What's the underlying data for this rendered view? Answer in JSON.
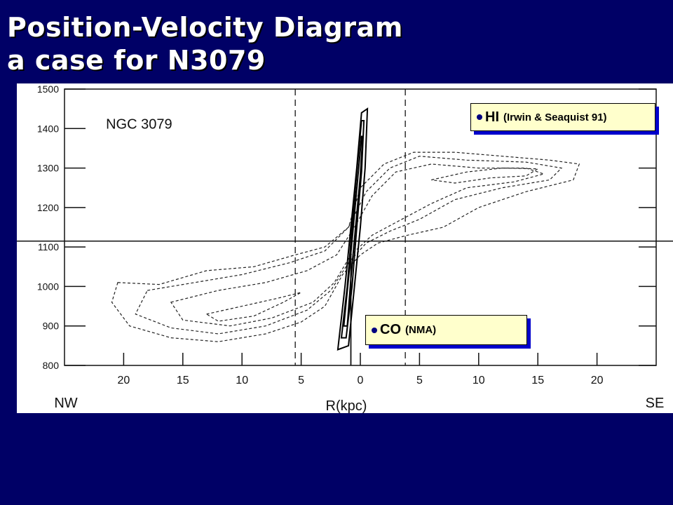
{
  "title": {
    "line1": "Position-Velocity Diagram",
    "line2": "a case for N3079"
  },
  "chart_data": {
    "type": "contour",
    "object_label": "NGC 3079",
    "xlabel": "R(kpc)",
    "x_left_label": "NW",
    "x_right_label": "SE",
    "x_ticks": [
      "20",
      "15",
      "10",
      "5",
      "0",
      "5",
      "10",
      "15",
      "20"
    ],
    "x_tick_values": [
      -20,
      -15,
      -10,
      -5,
      0,
      5,
      10,
      15,
      20
    ],
    "y_ticks": [
      "1500",
      "1400",
      "1300",
      "1200",
      "1100",
      "1000",
      "900",
      "800"
    ],
    "y_tick_values": [
      1500,
      1400,
      1300,
      1200,
      1100,
      1000,
      900,
      800
    ],
    "xlim": [
      -25,
      25
    ],
    "ylim": [
      800,
      1500
    ],
    "systemic_velocity_line": 1115,
    "dashed_verticals_kpc": [
      -5.5,
      3.8
    ],
    "center_line_kpc": -0.8,
    "hi_contours_dashed": [
      {
        "level": 1,
        "points": [
          [
            -20.5,
            1010
          ],
          [
            -17,
            1005
          ],
          [
            -13,
            1040
          ],
          [
            -9,
            1050
          ],
          [
            -5.5,
            1080
          ],
          [
            -3,
            1100
          ],
          [
            -1,
            1150
          ],
          [
            0,
            1250
          ],
          [
            2,
            1310
          ],
          [
            4.5,
            1340
          ],
          [
            8,
            1340
          ],
          [
            12,
            1330
          ],
          [
            16,
            1320
          ],
          [
            18.5,
            1310
          ],
          [
            18,
            1270
          ],
          [
            14,
            1240
          ],
          [
            10,
            1200
          ],
          [
            7,
            1150
          ],
          [
            4,
            1130
          ],
          [
            1.5,
            1110
          ],
          [
            0,
            1080
          ],
          [
            -1.5,
            1030
          ],
          [
            -3,
            950
          ],
          [
            -5,
            910
          ],
          [
            -8,
            880
          ],
          [
            -12,
            860
          ],
          [
            -16,
            870
          ],
          [
            -19.5,
            900
          ],
          [
            -21,
            960
          ]
        ]
      },
      {
        "level": 2,
        "points": [
          [
            -18,
            990
          ],
          [
            -14,
            1010
          ],
          [
            -10,
            1030
          ],
          [
            -6,
            1060
          ],
          [
            -3,
            1090
          ],
          [
            -1,
            1150
          ],
          [
            0.5,
            1240
          ],
          [
            2.5,
            1300
          ],
          [
            5,
            1330
          ],
          [
            9,
            1320
          ],
          [
            14,
            1315
          ],
          [
            17,
            1300
          ],
          [
            16,
            1270
          ],
          [
            12,
            1250
          ],
          [
            8,
            1220
          ],
          [
            5,
            1170
          ],
          [
            2.5,
            1140
          ],
          [
            0.5,
            1110
          ],
          [
            -1,
            1060
          ],
          [
            -2.5,
            990
          ],
          [
            -4.5,
            940
          ],
          [
            -8,
            900
          ],
          [
            -12,
            880
          ],
          [
            -16,
            895
          ],
          [
            -19,
            930
          ]
        ]
      },
      {
        "level": 3,
        "points": [
          [
            -16,
            960
          ],
          [
            -12,
            990
          ],
          [
            -8,
            1010
          ],
          [
            -4.5,
            1040
          ],
          [
            -2,
            1080
          ],
          [
            -0.5,
            1150
          ],
          [
            1,
            1230
          ],
          [
            3,
            1290
          ],
          [
            6,
            1310
          ],
          [
            10,
            1300
          ],
          [
            14,
            1300
          ],
          [
            15.5,
            1285
          ],
          [
            13,
            1265
          ],
          [
            9,
            1250
          ],
          [
            6,
            1210
          ],
          [
            3.5,
            1170
          ],
          [
            1,
            1130
          ],
          [
            -0.8,
            1080
          ],
          [
            -2.2,
            1010
          ],
          [
            -4,
            960
          ],
          [
            -7.5,
            920
          ],
          [
            -11,
            900
          ],
          [
            -15,
            915
          ]
        ]
      },
      {
        "level": 4,
        "points": [
          [
            -13,
            930
          ],
          [
            -10,
            950
          ],
          [
            -7,
            970
          ],
          [
            -5,
            985
          ],
          [
            -6.5,
            960
          ],
          [
            -9,
            925
          ],
          [
            -12,
            912
          ]
        ]
      },
      {
        "level": 5,
        "points": [
          [
            6,
            1270
          ],
          [
            9,
            1290
          ],
          [
            12,
            1300
          ],
          [
            15,
            1298
          ],
          [
            14,
            1280
          ],
          [
            11,
            1275
          ],
          [
            8,
            1262
          ]
        ]
      }
    ],
    "co_contours_solid": [
      {
        "level": 1,
        "points": [
          [
            -1.9,
            840
          ],
          [
            -1.3,
            1000
          ],
          [
            -0.8,
            1150
          ],
          [
            -0.3,
            1300
          ],
          [
            0.1,
            1440
          ],
          [
            0.6,
            1450
          ],
          [
            0.4,
            1300
          ],
          [
            0.0,
            1150
          ],
          [
            -0.5,
            1000
          ],
          [
            -1.0,
            850
          ]
        ]
      },
      {
        "level": 2,
        "points": [
          [
            -1.6,
            870
          ],
          [
            -1.1,
            1000
          ],
          [
            -0.7,
            1150
          ],
          [
            -0.3,
            1290
          ],
          [
            0.1,
            1420
          ],
          [
            0.3,
            1420
          ],
          [
            0.1,
            1290
          ],
          [
            -0.3,
            1150
          ],
          [
            -0.7,
            1000
          ],
          [
            -1.2,
            870
          ]
        ]
      },
      {
        "level": 3,
        "points": [
          [
            -1.4,
            900
          ],
          [
            -1.0,
            1020
          ],
          [
            -0.6,
            1150
          ],
          [
            -0.2,
            1280
          ],
          [
            0.1,
            1380
          ],
          [
            0.2,
            1380
          ],
          [
            0.0,
            1280
          ],
          [
            -0.4,
            1150
          ],
          [
            -0.8,
            1020
          ],
          [
            -1.1,
            900
          ]
        ]
      }
    ]
  },
  "callouts": {
    "hi": {
      "main": "HI",
      "ref": "(Irwin & Seaquist 91)"
    },
    "co": {
      "main": "CO",
      "ref": "(NMA)"
    }
  },
  "colors": {
    "background": "#000066",
    "title_text": "#ffffff",
    "callout_fill": "#ffffcc",
    "callout_shadow": "#0000cc",
    "bullet": "#000080"
  }
}
